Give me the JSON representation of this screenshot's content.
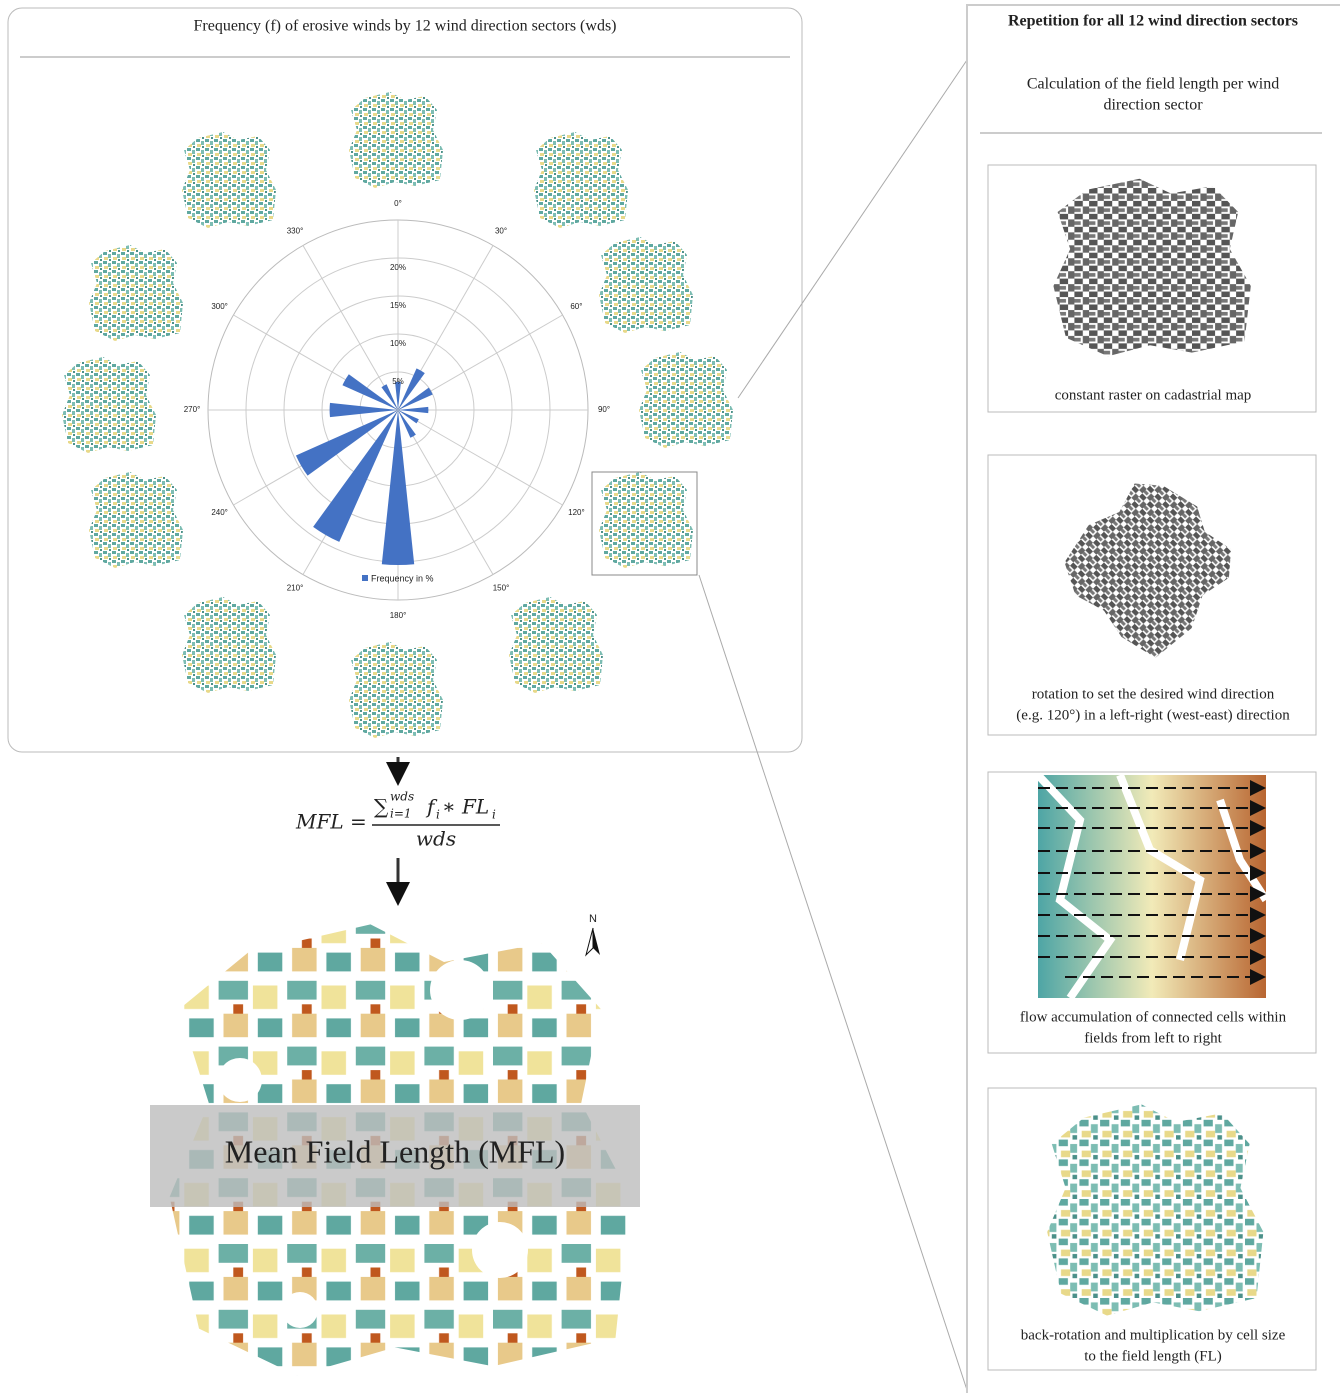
{
  "left_panel": {
    "title": "Frequency (f) of erosive winds by 12 wind direction sectors (wds)"
  },
  "chart_data": {
    "type": "polar-bar",
    "categories": [
      "0°",
      "30°",
      "60°",
      "90°",
      "120°",
      "150°",
      "180°",
      "210°",
      "240°",
      "270°",
      "300°",
      "330°"
    ],
    "series": [
      {
        "name": "Frequency in %",
        "color": "#4472c4",
        "values": [
          3.7,
          6,
          5,
          4,
          3,
          4,
          20.4,
          19,
          14.7,
          9,
          8,
          3.7
        ]
      }
    ],
    "ylim": [
      0,
      25
    ],
    "yticks": [
      {
        "value": 5,
        "label": "5%"
      },
      {
        "value": 10,
        "label": "10%"
      },
      {
        "value": 15,
        "label": "15%"
      },
      {
        "value": 20,
        "label": "20%"
      }
    ],
    "grid": true
  },
  "formula": {
    "lhs": "MFL =",
    "sum": "∑",
    "lower": "i=1",
    "upper": "wds",
    "f": "f",
    "fi": "i",
    "times": " ∗ FL",
    "fli": "i",
    "denominator": "wds"
  },
  "result_label": "Mean Field Length (MFL)",
  "north_label": "N",
  "right_panel": {
    "title": "Repetition for all 12 wind direction sectors",
    "subtitle": [
      "Calculation of the field length per wind",
      "direction sector"
    ],
    "steps": [
      {
        "caption": [
          "constant raster on cadastrial map"
        ]
      },
      {
        "caption": [
          "rotation to set the desired wind direction",
          "(e.g. 120°) in a left-right (west-east) direction"
        ]
      },
      {
        "caption": [
          "flow accumulation of connected cells within",
          "fields from left to right"
        ]
      },
      {
        "caption": [
          "back-rotation and multiplication by cell size",
          "to the field length (FL)"
        ]
      }
    ]
  }
}
